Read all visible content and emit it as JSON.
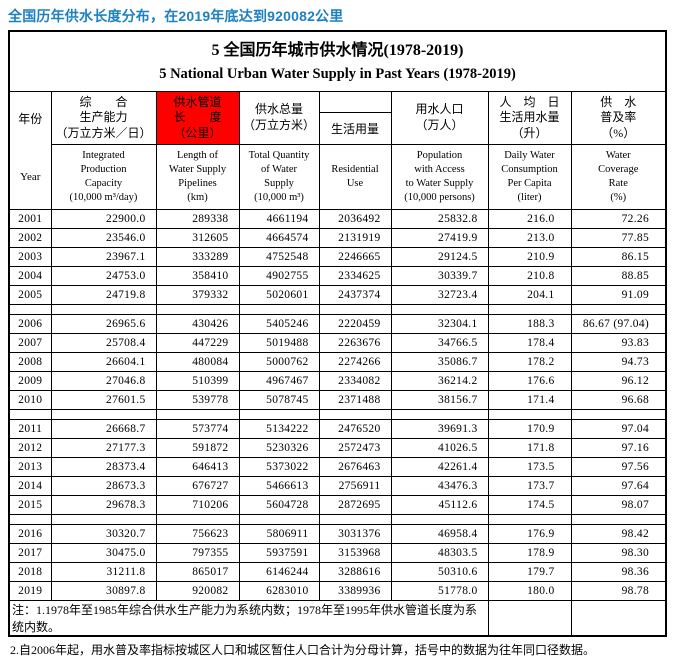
{
  "headline": "全国历年供水长度分布，在2019年底达到920082公里",
  "accent_colors": {
    "headline_blue": "#1d80c1",
    "highlight_red": "#ff0000"
  },
  "table": {
    "title_zh": "5 全国历年城市供水情况(1978-2019)",
    "title_en": "5 National Urban Water Supply in Past Years (1978-2019)",
    "header": {
      "year_zh": "年份",
      "year_en": "Year",
      "cols": [
        {
          "zh": "综　　合\n生产能力\n（万立方米／日）",
          "en": "Integrated\nProduction\nCapacity\n(10,000 m³/day)",
          "highlight": false
        },
        {
          "zh": "供水管道\n长　　度\n（公里）",
          "en": "Length of\nWater Supply\nPipelines\n(km)",
          "highlight": true
        },
        {
          "zh": "供水总量\n（万立方米）",
          "en": "Total Quantity\nof Water\nSupply\n(10,000 m³)",
          "highlight": false
        },
        {
          "zh": "生活用量",
          "en": "Residential\nUse",
          "highlight": false
        },
        {
          "zh": "用水人口\n（万人）",
          "en": "Population\nwith Access\nto Water Supply\n(10,000 persons)",
          "highlight": false
        },
        {
          "zh": "人　均　日\n生活用水量\n（升）",
          "en": "Daily Water\nConsumption\nPer Capita\n(liter)",
          "highlight": false
        },
        {
          "zh": "供　水\n普及率\n（%）",
          "en": "Water\nCoverage\nRate\n(%)",
          "highlight": false
        }
      ]
    },
    "rows": [
      [
        "2001",
        "22900.0",
        "289338",
        "4661194",
        "2036492",
        "25832.8",
        "216.0",
        "72.26"
      ],
      [
        "2002",
        "23546.0",
        "312605",
        "4664574",
        "2131919",
        "27419.9",
        "213.0",
        "77.85"
      ],
      [
        "2003",
        "23967.1",
        "333289",
        "4752548",
        "2246665",
        "29124.5",
        "210.9",
        "86.15"
      ],
      [
        "2004",
        "24753.0",
        "358410",
        "4902755",
        "2334625",
        "30339.7",
        "210.8",
        "88.85"
      ],
      [
        "2005",
        "24719.8",
        "379332",
        "5020601",
        "2437374",
        "32723.4",
        "204.1",
        "91.09"
      ],
      [
        "2006",
        "26965.6",
        "430426",
        "5405246",
        "2220459",
        "32304.1",
        "188.3",
        "86.67 (97.04)"
      ],
      [
        "2007",
        "25708.4",
        "447229",
        "5019488",
        "2263676",
        "34766.5",
        "178.4",
        "93.83"
      ],
      [
        "2008",
        "26604.1",
        "480084",
        "5000762",
        "2274266",
        "35086.7",
        "178.2",
        "94.73"
      ],
      [
        "2009",
        "27046.8",
        "510399",
        "4967467",
        "2334082",
        "36214.2",
        "176.6",
        "96.12"
      ],
      [
        "2010",
        "27601.5",
        "539778",
        "5078745",
        "2371488",
        "38156.7",
        "171.4",
        "96.68"
      ],
      [
        "2011",
        "26668.7",
        "573774",
        "5134222",
        "2476520",
        "39691.3",
        "170.9",
        "97.04"
      ],
      [
        "2012",
        "27177.3",
        "591872",
        "5230326",
        "2572473",
        "41026.5",
        "171.8",
        "97.16"
      ],
      [
        "2013",
        "28373.4",
        "646413",
        "5373022",
        "2676463",
        "42261.4",
        "173.5",
        "97.56"
      ],
      [
        "2014",
        "28673.3",
        "676727",
        "5466613",
        "2756911",
        "43476.3",
        "173.7",
        "97.64"
      ],
      [
        "2015",
        "29678.3",
        "710206",
        "5604728",
        "2872695",
        "45112.6",
        "174.5",
        "98.07"
      ],
      [
        "2016",
        "30320.7",
        "756623",
        "5806911",
        "3031376",
        "46958.4",
        "176.9",
        "98.42"
      ],
      [
        "2017",
        "30475.0",
        "797355",
        "5937591",
        "3153968",
        "48303.5",
        "178.9",
        "98.30"
      ],
      [
        "2018",
        "31211.8",
        "865017",
        "6146244",
        "3288616",
        "50310.6",
        "179.7",
        "98.36"
      ],
      [
        "2019",
        "30897.8",
        "920082",
        "6283010",
        "3389936",
        "51778.0",
        "180.0",
        "98.78"
      ]
    ],
    "group_breaks_after": [
      "2005",
      "2010",
      "2015"
    ],
    "notes": {
      "note1": "注：1.1978年至1985年综合供水生产能力为系统内数；1978年至1995年供水管道长度为系统内数。",
      "note2": "2.自2006年起，用水普及率指标按城区人口和城区暂住人口合计为分母计算，括号中的数据为往年同口径数据。"
    }
  }
}
